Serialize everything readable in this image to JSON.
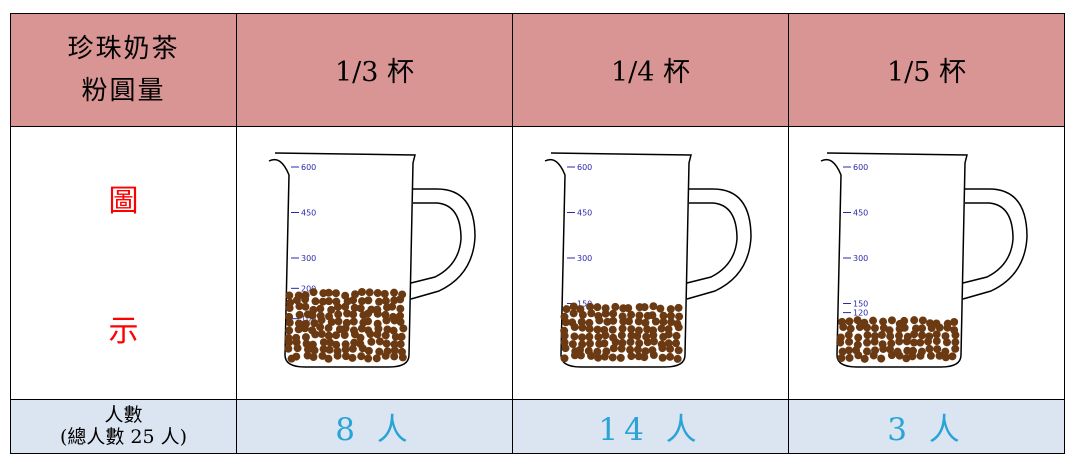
{
  "table": {
    "corner": {
      "line1": "珍珠奶茶",
      "line2": "粉圓量"
    },
    "columns": [
      "1/3 杯",
      "1/4 杯",
      "1/5 杯"
    ],
    "row_label": {
      "top": "圖",
      "bottom": "示"
    },
    "footer_label": {
      "line1": "人數",
      "line2": "(總人數 25 人)"
    },
    "counts": [
      "8 人",
      "14 人",
      "3 人"
    ]
  },
  "cups": [
    {
      "ticks": [
        "600",
        "450",
        "300",
        "200",
        "100"
      ],
      "fill_fraction": 0.333
    },
    {
      "ticks": [
        "600",
        "450",
        "300",
        "150"
      ],
      "fill_fraction": 0.25
    },
    {
      "ticks": [
        "600",
        "450",
        "300",
        "150",
        "120"
      ],
      "fill_fraction": 0.2
    }
  ],
  "colors": {
    "header_bg": "#d99594",
    "footer_bg": "#dbe5f1",
    "label_red": "#ff0000",
    "count_blue": "#2aa3d6",
    "tick_blue": "#2a2aa8",
    "pearl": "#6b3a12"
  }
}
